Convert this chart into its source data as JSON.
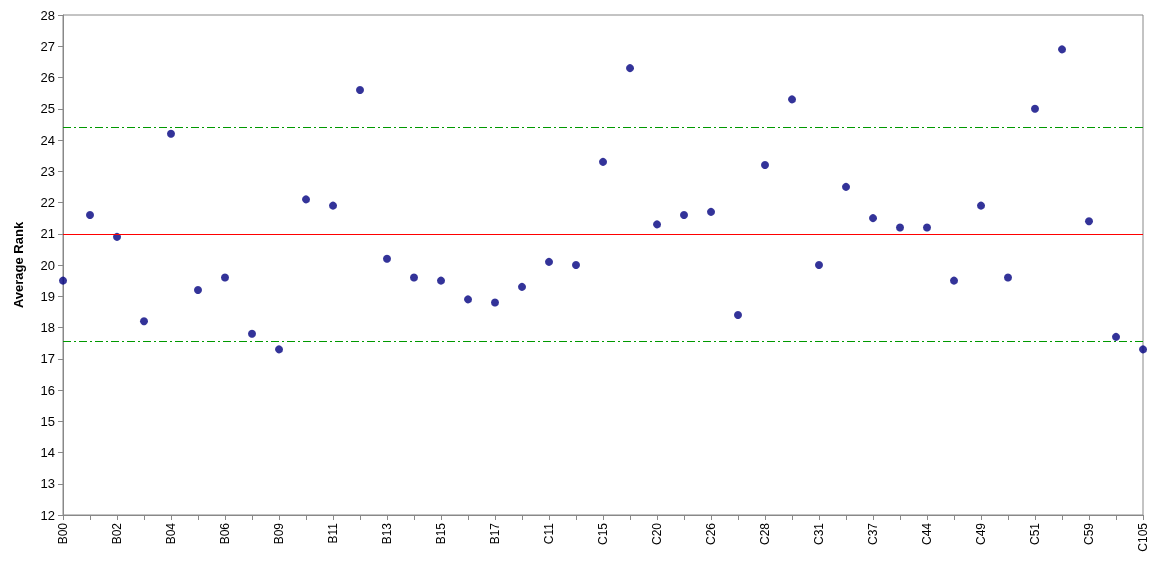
{
  "chart_data": {
    "type": "scatter",
    "ylabel": "Average Rank",
    "categories": [
      "B00",
      null,
      "B02",
      null,
      "B04",
      null,
      "B06",
      null,
      "B09",
      null,
      "B11",
      null,
      "B13",
      null,
      "B15",
      null,
      "B17",
      null,
      "C11",
      null,
      "C15",
      null,
      "C20",
      null,
      "C26",
      null,
      "C28",
      null,
      "C31",
      null,
      "C37",
      null,
      "C44",
      null,
      "C49",
      null,
      "C51",
      null,
      "C59",
      null,
      "C105"
    ],
    "series": [
      {
        "color": "#000080",
        "values": [
          19.5,
          21.6,
          20.9,
          18.2,
          24.2,
          19.2,
          19.6,
          17.8,
          17.3,
          22.1,
          21.9,
          25.6,
          20.2,
          19.6,
          19.5,
          18.9,
          18.8,
          19.3,
          20.1,
          20.0,
          23.3,
          26.3,
          21.3,
          21.6,
          21.7,
          18.4,
          23.2,
          25.3,
          20.0,
          22.5,
          21.5,
          21.2,
          21.2,
          19.5,
          21.9,
          19.6,
          25.0,
          26.9,
          21.4,
          17.7,
          17.3
        ]
      }
    ],
    "ylim": [
      12,
      28
    ],
    "yticks": [
      12,
      13,
      14,
      15,
      16,
      17,
      18,
      19,
      20,
      21,
      22,
      23,
      24,
      25,
      26,
      27,
      28
    ],
    "grid": false,
    "marker": "circle",
    "ref_lines": [
      {
        "axis": "y",
        "value": 21.0,
        "color": "#ff0000",
        "line_style": "solid"
      },
      {
        "axis": "y",
        "value": 24.4,
        "color": "#009900",
        "line_style": "dashed"
      },
      {
        "axis": "y",
        "value": 17.55,
        "color": "#009900",
        "line_style": "dashed"
      }
    ]
  }
}
